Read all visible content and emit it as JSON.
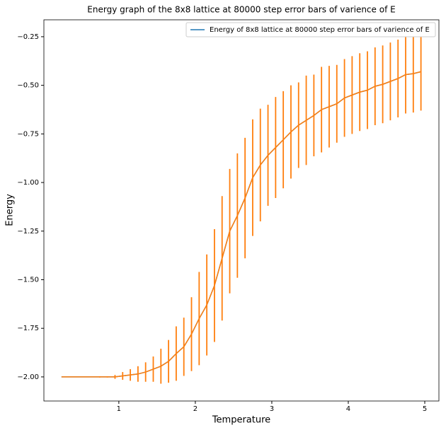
{
  "chart_data": {
    "type": "errorbar-line",
    "title": "Energy graph of the 8x8 lattice at 80000 step error bars of varience of E",
    "xlabel": "Temperature",
    "ylabel": "Energy",
    "x": [
      0.25,
      0.35,
      0.45,
      0.55,
      0.65,
      0.75,
      0.85,
      0.95,
      1.05,
      1.15,
      1.25,
      1.35,
      1.45,
      1.55,
      1.65,
      1.75,
      1.85,
      1.95,
      2.05,
      2.15,
      2.25,
      2.35,
      2.45,
      2.55,
      2.65,
      2.75,
      2.85,
      2.95,
      3.05,
      3.15,
      3.25,
      3.35,
      3.45,
      3.55,
      3.65,
      3.75,
      3.85,
      3.95,
      4.05,
      4.15,
      4.25,
      4.35,
      4.45,
      4.55,
      4.65,
      4.75,
      4.85,
      4.95
    ],
    "series": [
      {
        "name": "Energy of 8x8 lattice at 80000 step error bars of varience of E",
        "color": "#1f77b4",
        "values": [
          -2.0,
          -2.0,
          -2.0,
          -2.0,
          -2.0,
          -2.0,
          -2.0,
          -2.0,
          -1.995,
          -1.99,
          -1.985,
          -1.975,
          -1.96,
          -1.945,
          -1.92,
          -1.88,
          -1.845,
          -1.78,
          -1.7,
          -1.63,
          -1.53,
          -1.39,
          -1.25,
          -1.17,
          -1.08,
          -0.975,
          -0.91,
          -0.86,
          -0.82,
          -0.78,
          -0.74,
          -0.705,
          -0.68,
          -0.655,
          -0.625,
          -0.61,
          -0.595,
          -0.565,
          -0.55,
          -0.535,
          -0.525,
          -0.505,
          -0.495,
          -0.48,
          -0.465,
          -0.445,
          -0.44,
          -0.43
        ]
      }
    ],
    "errors": {
      "color": "#ff7f0e",
      "values": [
        0,
        0,
        0,
        0,
        0,
        0.003,
        0.003,
        0.01,
        0.02,
        0.03,
        0.04,
        0.05,
        0.065,
        0.09,
        0.11,
        0.14,
        0.15,
        0.19,
        0.24,
        0.26,
        0.29,
        0.32,
        0.32,
        0.32,
        0.31,
        0.3,
        0.29,
        0.26,
        0.26,
        0.25,
        0.24,
        0.22,
        0.23,
        0.21,
        0.22,
        0.21,
        0.2,
        0.2,
        0.2,
        0.2,
        0.2,
        0.2,
        0.2,
        0.2,
        0.2,
        0.2,
        0.2,
        0.2
      ]
    },
    "xlim": [
      0.02,
      5.185
    ],
    "ylim": [
      -2.124,
      -0.163
    ],
    "xticks": [
      1,
      2,
      3,
      4,
      5
    ],
    "yticks": [
      {
        "value": -2.0,
        "label": "−2.00"
      },
      {
        "value": -1.75,
        "label": "−1.75"
      },
      {
        "value": -1.5,
        "label": "−1.50"
      },
      {
        "value": -1.25,
        "label": "−1.25"
      },
      {
        "value": -1.0,
        "label": "−1.00"
      },
      {
        "value": -0.75,
        "label": "−0.75"
      },
      {
        "value": -0.5,
        "label": "−0.50"
      },
      {
        "value": -0.25,
        "label": "−0.25"
      }
    ],
    "legend": "upper right"
  }
}
